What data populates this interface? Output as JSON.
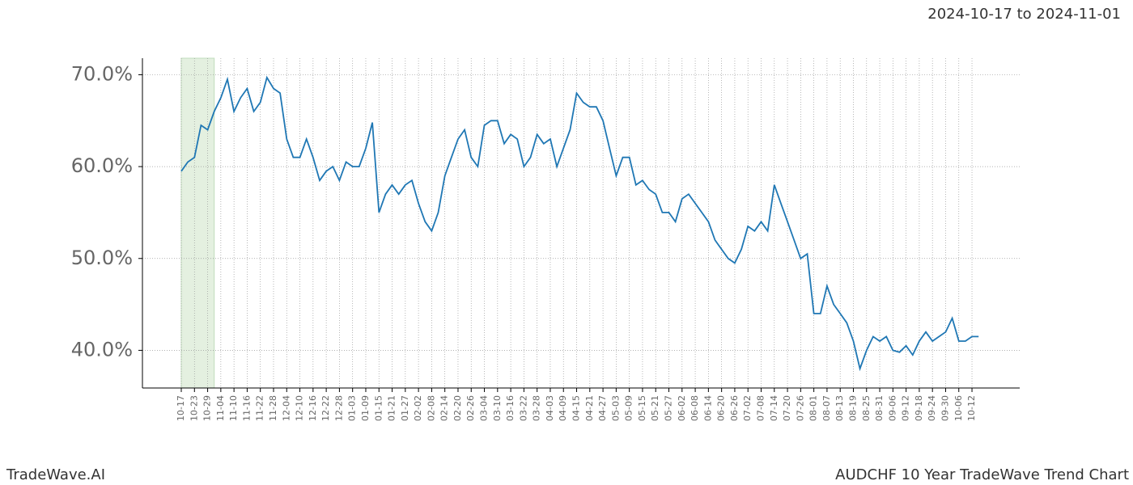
{
  "chart_data": {
    "type": "line",
    "title": "AUDCHF 10 Year TradeWave Trend Chart",
    "subtitle": "2024-10-17 to 2024-11-01",
    "brand": "TradeWave.AI",
    "highlight_start": "10-17",
    "highlight_end": "11-01",
    "highlight_color": "#d9ead3",
    "x": [
      "10-17",
      "10-20",
      "10-23",
      "10-26",
      "10-29",
      "11-01",
      "11-04",
      "11-07",
      "11-10",
      "11-13",
      "11-16",
      "11-19",
      "11-22",
      "11-25",
      "11-28",
      "12-01",
      "12-04",
      "12-07",
      "12-10",
      "12-13",
      "12-16",
      "12-19",
      "12-22",
      "12-25",
      "12-28",
      "12-31",
      "01-03",
      "01-06",
      "01-09",
      "01-12",
      "01-15",
      "01-18",
      "01-21",
      "01-24",
      "01-27",
      "01-30",
      "02-02",
      "02-05",
      "02-08",
      "02-11",
      "02-14",
      "02-17",
      "02-20",
      "02-23",
      "02-26",
      "03-01",
      "03-04",
      "03-07",
      "03-10",
      "03-13",
      "03-16",
      "03-19",
      "03-22",
      "03-25",
      "03-28",
      "03-31",
      "04-03",
      "04-06",
      "04-09",
      "04-12",
      "04-15",
      "04-18",
      "04-21",
      "04-24",
      "04-27",
      "04-30",
      "05-03",
      "05-06",
      "05-09",
      "05-12",
      "05-15",
      "05-18",
      "05-21",
      "05-24",
      "05-27",
      "05-30",
      "06-02",
      "06-05",
      "06-08",
      "06-11",
      "06-14",
      "06-17",
      "06-20",
      "06-23",
      "06-26",
      "06-29",
      "07-02",
      "07-05",
      "07-08",
      "07-11",
      "07-14",
      "07-17",
      "07-20",
      "07-23",
      "07-26",
      "07-29",
      "08-01",
      "08-04",
      "08-07",
      "08-10",
      "08-13",
      "08-16",
      "08-19",
      "08-22",
      "08-25",
      "08-28",
      "08-31",
      "09-03",
      "09-06",
      "09-09",
      "09-12",
      "09-15",
      "09-18",
      "09-21",
      "09-24",
      "09-27",
      "09-30",
      "10-03",
      "10-06",
      "10-09",
      "10-12",
      "10-15"
    ],
    "series": [
      {
        "color": "#1f77b4",
        "values": [
          59.5,
          60.5,
          61,
          64.5,
          64,
          66,
          67.5,
          69.5,
          66,
          67.5,
          68.5,
          66,
          67,
          69.7,
          68.5,
          68,
          63,
          61,
          61,
          63,
          61,
          58.5,
          59.5,
          60,
          58.5,
          60.5,
          60,
          60,
          62,
          64.8,
          55,
          57,
          58,
          57,
          58,
          58.5,
          56,
          54,
          53,
          55,
          59,
          61,
          63,
          64,
          61,
          60,
          64.5,
          65,
          65,
          62.5,
          63.5,
          63,
          60,
          61,
          63.5,
          62.5,
          63,
          60,
          62,
          64,
          68,
          67,
          66.5,
          66.5,
          65,
          62,
          59,
          61,
          61,
          58,
          58.5,
          57.5,
          57,
          55,
          55,
          54,
          56.5,
          57,
          56,
          55,
          54,
          52,
          51,
          50,
          49.5,
          51,
          53.5,
          53,
          54,
          53,
          58,
          56,
          54,
          52,
          50,
          50.5,
          44,
          44,
          47,
          45,
          44,
          43,
          41,
          38,
          40,
          41.5,
          41,
          41.5,
          40,
          39.8,
          40.5,
          39.5,
          41,
          42,
          41,
          41.5,
          42,
          43.5,
          41,
          41,
          41.5,
          41.5
        ]
      }
    ],
    "xticks": [
      "10-17",
      "10-23",
      "10-29",
      "11-04",
      "11-10",
      "11-16",
      "11-22",
      "11-28",
      "12-04",
      "12-10",
      "12-16",
      "12-22",
      "12-28",
      "01-03",
      "01-09",
      "01-15",
      "01-21",
      "01-27",
      "02-02",
      "02-08",
      "02-14",
      "02-20",
      "02-26",
      "03-04",
      "03-10",
      "03-16",
      "03-22",
      "03-28",
      "04-03",
      "04-09",
      "04-15",
      "04-21",
      "04-27",
      "05-03",
      "05-09",
      "05-15",
      "05-21",
      "05-27",
      "06-02",
      "06-08",
      "06-14",
      "06-20",
      "06-26",
      "07-02",
      "07-08",
      "07-14",
      "07-20",
      "07-26",
      "08-01",
      "08-07",
      "08-13",
      "08-19",
      "08-25",
      "08-31",
      "09-06",
      "09-12",
      "09-18",
      "09-24",
      "09-30",
      "10-06",
      "10-12"
    ],
    "ylim": [
      35.9,
      71.8
    ],
    "yticks": [
      {
        "value": 40,
        "label": "40.0%"
      },
      {
        "value": 50,
        "label": "50.0%"
      },
      {
        "value": 60,
        "label": "60.0%"
      },
      {
        "value": 70,
        "label": "70.0%"
      }
    ],
    "grid": true
  }
}
